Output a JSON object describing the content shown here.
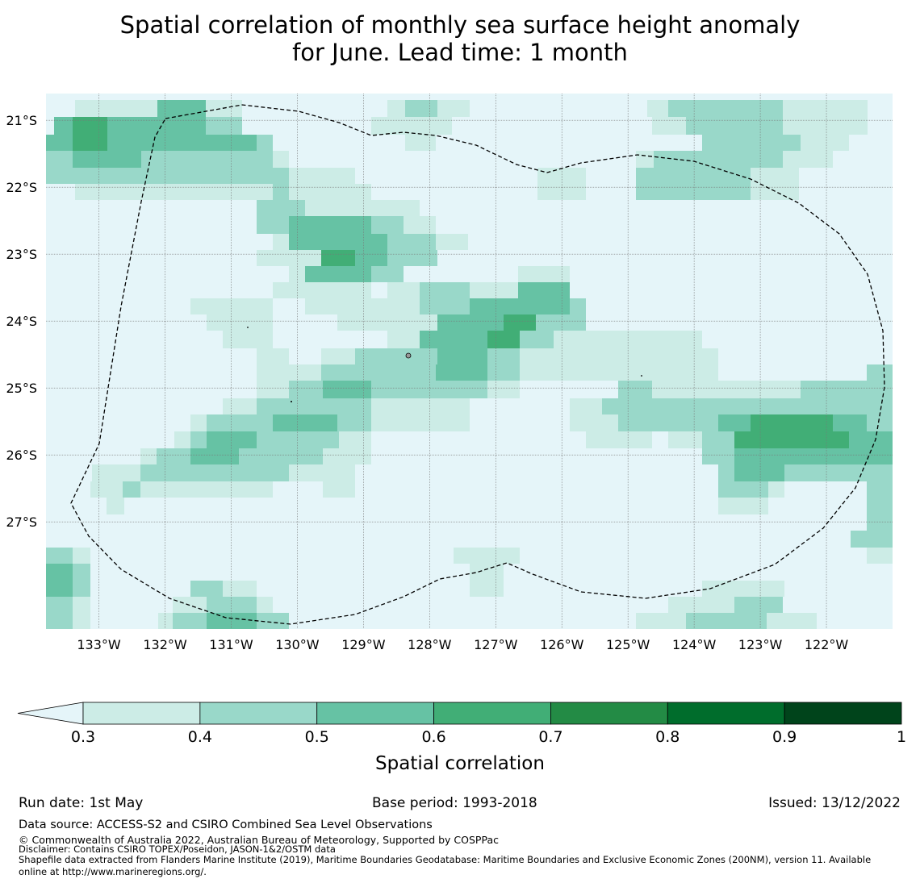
{
  "title": {
    "line1": "Spatial correlation of monthly sea surface height anomaly",
    "line2": "for June. Lead time: 1 month"
  },
  "map": {
    "lon_range": [
      -133.8,
      -121.0
    ],
    "lat_range": [
      -20.6,
      -28.6
    ],
    "lon_ticks": [
      {
        "value": -133,
        "label": "133°W"
      },
      {
        "value": -132,
        "label": "132°W"
      },
      {
        "value": -131,
        "label": "131°W"
      },
      {
        "value": -130,
        "label": "130°W"
      },
      {
        "value": -129,
        "label": "129°W"
      },
      {
        "value": -128,
        "label": "128°W"
      },
      {
        "value": -127,
        "label": "127°W"
      },
      {
        "value": -126,
        "label": "126°W"
      },
      {
        "value": -125,
        "label": "125°W"
      },
      {
        "value": -124,
        "label": "124°W"
      },
      {
        "value": -123,
        "label": "123°W"
      },
      {
        "value": -122,
        "label": "122°W"
      }
    ],
    "lat_ticks": [
      {
        "value": -21,
        "label": "21°S"
      },
      {
        "value": -22,
        "label": "22°S"
      },
      {
        "value": -23,
        "label": "23°S"
      },
      {
        "value": -24,
        "label": "24°S"
      },
      {
        "value": -25,
        "label": "25°S"
      },
      {
        "value": -26,
        "label": "26°S"
      },
      {
        "value": -27,
        "label": "27°S"
      }
    ],
    "grid_on": true,
    "background_color": "#e5f5f9",
    "eez_boundary_style": "dashed"
  },
  "colorbar": {
    "label": "Spatial correlation",
    "ticks": [
      "0.3",
      "0.4",
      "0.5",
      "0.6",
      "0.7",
      "0.8",
      "0.9",
      "1"
    ],
    "colors": [
      "#ccece6",
      "#99d8c9",
      "#66c2a4",
      "#41ae76",
      "#238b45",
      "#006d2c",
      "#00441b"
    ],
    "under_color": "#e5f5f9"
  },
  "footer": {
    "run_date": "Run date: 1st May",
    "base_period": "Base period: 1993-2018",
    "issued": "Issued: 13/12/2022",
    "data_source": "Data source: ACCESS-S2 and CSIRO Combined Sea Level Observations",
    "copyright": "© Commonwealth of Australia 2022, Australian Bureau of Meteorology, Supported by COSPPac",
    "disclaimer": "Disclaimer: Contains CSIRO TOPEX/Poseidon, JASON-1&2/OSTM data",
    "shapefile_line1": "Shapefile data extracted from Flanders Marine Institute (2019), Maritime Boundaries Geodatabase: Maritime Boundaries and Exclusive Economic Zones (200NM), version 11. Available",
    "shapefile_line2": "online at http://www.marineregions.org/."
  }
}
